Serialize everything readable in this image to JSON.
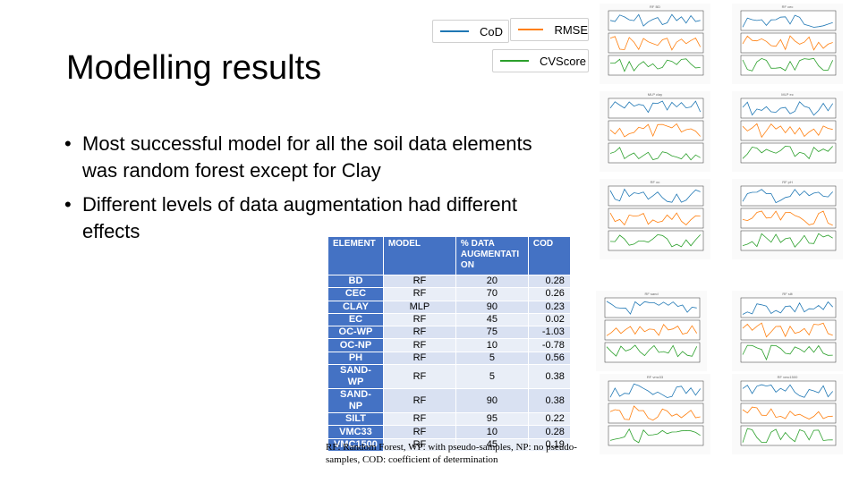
{
  "slide": {
    "title": "Modelling results",
    "bullets": [
      "Most successful model for all the soil data elements was random forest except for Clay",
      "Different levels of data augmentation had different effects"
    ],
    "footnote": "RF: Random Forest, WP: with pseudo-samples, NP: no pseudo-samples, COD: coefficient of determination"
  },
  "legend": {
    "cod": "CoD",
    "rmse": "RMSE",
    "cvscore": "CVScore",
    "colors": {
      "cod": "#1f77b4",
      "rmse": "#ff7f0e",
      "cvscore": "#2ca02c"
    }
  },
  "table": {
    "headers": [
      "ELEMENT",
      "MODEL",
      "% DATA AUGMENTATI ON",
      "COD"
    ],
    "rows": [
      [
        "BD",
        "RF",
        "20",
        "0.28"
      ],
      [
        "CEC",
        "RF",
        "70",
        "0.26"
      ],
      [
        "CLAY",
        "MLP",
        "90",
        "0.23"
      ],
      [
        "EC",
        "RF",
        "45",
        "0.02"
      ],
      [
        "OC-WP",
        "RF",
        "75",
        "-1.03"
      ],
      [
        "OC-NP",
        "RF",
        "10",
        "-0.78"
      ],
      [
        "PH",
        "RF",
        "5",
        "0.56"
      ],
      [
        "SAND-WP",
        "RF",
        "5",
        "0.38"
      ],
      [
        "SAND-NP",
        "RF",
        "90",
        "0.38"
      ],
      [
        "SILT",
        "RF",
        "95",
        "0.22"
      ],
      [
        "VMC33",
        "RF",
        "10",
        "0.28"
      ],
      [
        "VMC1500",
        "RF",
        "45",
        "0.19"
      ]
    ]
  },
  "thumbnails": [
    {
      "title": "RF BD"
    },
    {
      "title": "RF cec"
    },
    {
      "title": "MLP clay"
    },
    {
      "title": "MLP ec"
    },
    {
      "title": "RF oc"
    },
    {
      "title": "RF pH"
    },
    {
      "title": "RF sand"
    },
    {
      "title": "RF silt"
    },
    {
      "title": "RF vmc33"
    },
    {
      "title": "RF vmc1500"
    }
  ]
}
